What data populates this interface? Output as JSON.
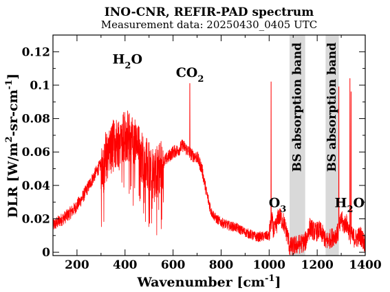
{
  "chart_data": {
    "type": "line",
    "title": "INO-CNR, REFIR-PAD spectrum",
    "subtitle": "Measurement data: 20250430_0405 UTC",
    "xlabel": {
      "main": "Wavenumber [cm",
      "sup": "-1",
      "close": "]"
    },
    "ylabel": {
      "p1": "DLR [W/m",
      "sup1": "2",
      "p2": "-sr-cm",
      "sup2": "-1",
      "close": "]"
    },
    "xlim": [
      100,
      1400
    ],
    "ylim": [
      -0.002,
      0.13
    ],
    "x_ticks": [
      200,
      400,
      600,
      800,
      1000,
      1200,
      1400
    ],
    "x_tick_labels": [
      "200",
      "400",
      "600",
      "800",
      "1000",
      "1200",
      "1400"
    ],
    "y_ticks": [
      0,
      0.02,
      0.04,
      0.06,
      0.08,
      0.1,
      0.12
    ],
    "y_tick_labels": [
      "0",
      "0.02",
      "0.04",
      "0.06",
      "0.08",
      "0.1",
      "0.12"
    ],
    "line_color": "#ff0000",
    "band_color": "#d9d9d9",
    "grid": false,
    "shaded_bands": [
      {
        "x_range": [
          1085,
          1150
        ],
        "label": "BS absorption band"
      },
      {
        "x_range": [
          1235,
          1290
        ],
        "label": "BS absorption band"
      }
    ],
    "annotations": [
      {
        "id": "h2o-left",
        "base": "H",
        "sub": "2",
        "tail": "O",
        "x": 410,
        "y": 0.113
      },
      {
        "id": "co2",
        "base": "CO",
        "sub": "2",
        "tail": "",
        "x": 670,
        "y": 0.105
      },
      {
        "id": "o3",
        "base": "O",
        "sub": "3",
        "tail": "",
        "x": 1035,
        "y": 0.027
      },
      {
        "id": "h2o-right",
        "base": "H",
        "sub": "2",
        "tail": "O",
        "x": 1335,
        "y": 0.027
      }
    ],
    "series": [
      {
        "x": [
          100,
          130,
          160,
          190,
          220,
          250,
          280,
          310,
          340,
          360,
          380,
          400,
          420,
          440,
          460,
          480,
          500,
          520,
          540,
          560,
          580,
          600,
          620,
          640,
          660,
          680,
          700,
          720,
          740,
          760,
          780,
          800,
          830,
          860,
          900,
          950,
          1000,
          1010,
          1020,
          1030,
          1040,
          1050,
          1060,
          1080,
          1085,
          1150,
          1170,
          1190,
          1210,
          1230,
          1235,
          1290,
          1300,
          1310,
          1320,
          1340,
          1360,
          1380,
          1400
        ],
        "y": [
          0.016,
          0.019,
          0.022,
          0.026,
          0.032,
          0.04,
          0.048,
          0.055,
          0.062,
          0.065,
          0.068,
          0.07,
          0.068,
          0.065,
          0.06,
          0.055,
          0.05,
          0.045,
          0.05,
          0.054,
          0.057,
          0.06,
          0.061,
          0.064,
          0.061,
          0.058,
          0.057,
          0.05,
          0.035,
          0.024,
          0.02,
          0.018,
          0.016,
          0.015,
          0.012,
          0.009,
          0.01,
          0.02,
          0.012,
          0.016,
          0.022,
          0.02,
          0.018,
          0.008,
          0.003,
          0.006,
          0.015,
          0.012,
          0.013,
          0.009,
          0.006,
          0.012,
          0.02,
          0.016,
          0.018,
          0.01,
          0.008,
          0.01,
          0.005
        ]
      }
    ]
  }
}
